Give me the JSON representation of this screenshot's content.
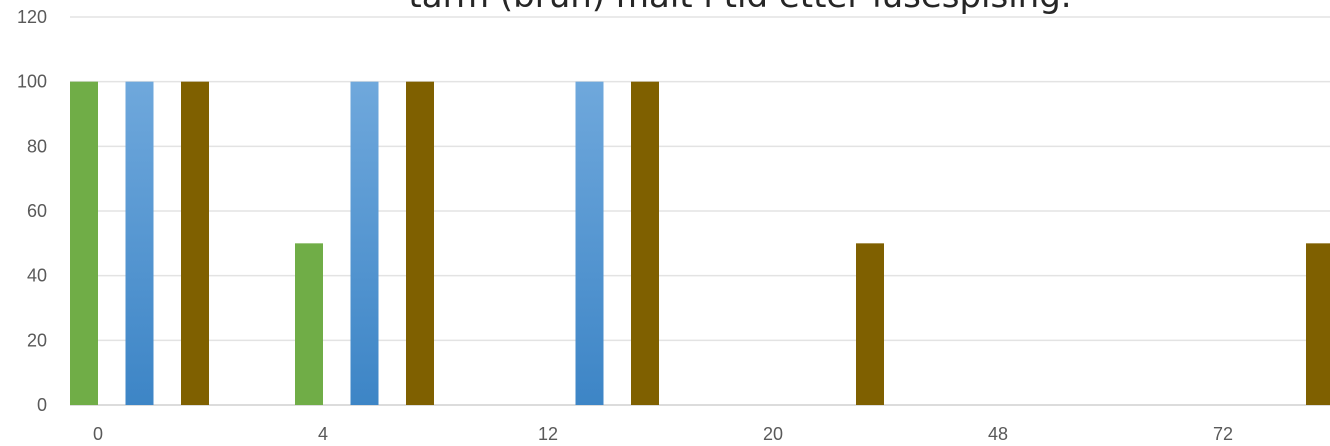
{
  "chart_data": {
    "type": "bar",
    "title": "tarm (brun) målt i tid etter lusespising.",
    "categories": [
      "0",
      "4",
      "12",
      "20",
      "48",
      "72"
    ],
    "series": [
      {
        "color": "#70ad47",
        "values": [
          100,
          50,
          0,
          0,
          0,
          0
        ]
      },
      {
        "color": "#5b9bd5",
        "values": [
          100,
          100,
          100,
          0,
          0,
          0
        ]
      },
      {
        "color": "#7f6000",
        "values": [
          100,
          100,
          100,
          50,
          0,
          50
        ]
      }
    ],
    "ylim": [
      0,
      120
    ],
    "yticks": [
      "0",
      "20",
      "40",
      "60",
      "80",
      "100",
      "120"
    ],
    "grid": true,
    "xlabel": "",
    "ylabel": ""
  }
}
